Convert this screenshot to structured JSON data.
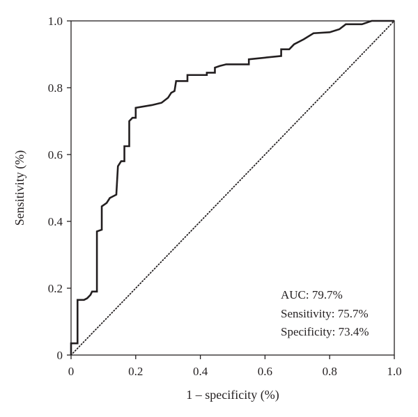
{
  "chart_data": {
    "type": "line",
    "title": "",
    "xlabel": "1 – specificity (%)",
    "ylabel": "Sensitivity (%)",
    "xlim": [
      0,
      1
    ],
    "ylim": [
      0,
      1
    ],
    "x_ticks": [
      0,
      0.2,
      0.4,
      0.6,
      0.8,
      1.0
    ],
    "x_tick_labels": [
      "0",
      "0.2",
      "0.4",
      "0.6",
      "0.8",
      "1.0"
    ],
    "y_ticks": [
      0,
      0.2,
      0.4,
      0.6,
      0.8,
      1.0
    ],
    "y_tick_labels": [
      "0",
      "0.2",
      "0.4",
      "0.6",
      "0.8",
      "1.0"
    ],
    "grid": false,
    "series": [
      {
        "style": "solid",
        "color": "#231f20",
        "x": [
          0.0,
          0.0,
          0.02,
          0.02,
          0.04,
          0.05,
          0.06,
          0.065,
          0.08,
          0.08,
          0.095,
          0.095,
          0.11,
          0.12,
          0.14,
          0.145,
          0.155,
          0.165,
          0.165,
          0.18,
          0.18,
          0.19,
          0.2,
          0.2,
          0.25,
          0.28,
          0.3,
          0.31,
          0.32,
          0.325,
          0.36,
          0.36,
          0.41,
          0.42,
          0.42,
          0.445,
          0.445,
          0.46,
          0.48,
          0.55,
          0.55,
          0.65,
          0.65,
          0.675,
          0.69,
          0.72,
          0.75,
          0.8,
          0.83,
          0.85,
          0.86,
          0.9,
          0.93,
          1.0
        ],
        "y": [
          0.0,
          0.035,
          0.035,
          0.165,
          0.165,
          0.17,
          0.18,
          0.19,
          0.19,
          0.37,
          0.375,
          0.445,
          0.455,
          0.47,
          0.48,
          0.565,
          0.58,
          0.58,
          0.625,
          0.625,
          0.7,
          0.71,
          0.71,
          0.74,
          0.748,
          0.755,
          0.77,
          0.785,
          0.79,
          0.82,
          0.82,
          0.838,
          0.838,
          0.838,
          0.845,
          0.845,
          0.86,
          0.865,
          0.87,
          0.87,
          0.885,
          0.895,
          0.915,
          0.915,
          0.93,
          0.945,
          0.963,
          0.966,
          0.975,
          0.99,
          0.99,
          0.99,
          1.0,
          1.0
        ]
      },
      {
        "style": "dotted",
        "color": "#231f20",
        "x": [
          0,
          1
        ],
        "y": [
          0,
          1
        ]
      }
    ],
    "annotations": [
      "AUC: 79.7%",
      "Sensitivity: 75.7%",
      "Specificity: 73.4%"
    ]
  }
}
